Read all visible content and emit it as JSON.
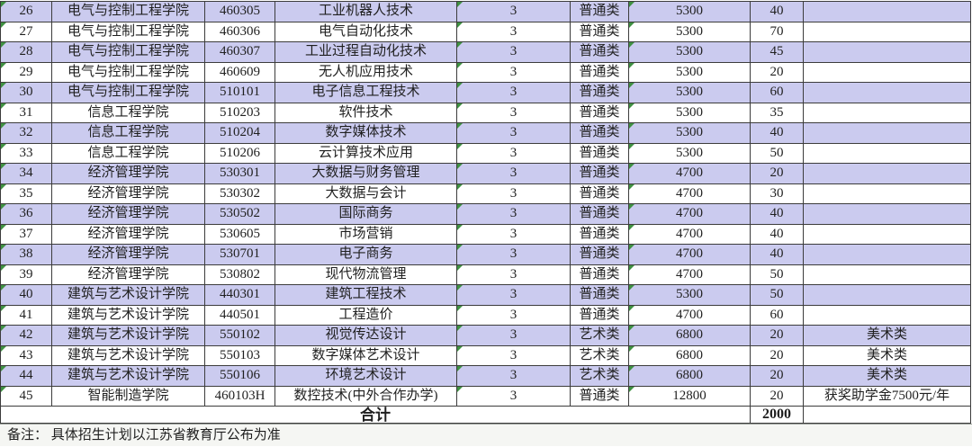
{
  "table": {
    "rows": [
      {
        "no": "26",
        "college": "电气与控制工程学院",
        "code": "460305",
        "major": "工业机器人技术",
        "years": "3",
        "type": "普通类",
        "tuition": "5300",
        "quota": "40",
        "note": ""
      },
      {
        "no": "27",
        "college": "电气与控制工程学院",
        "code": "460306",
        "major": "电气自动化技术",
        "years": "3",
        "type": "普通类",
        "tuition": "5300",
        "quota": "70",
        "note": ""
      },
      {
        "no": "28",
        "college": "电气与控制工程学院",
        "code": "460307",
        "major": "工业过程自动化技术",
        "years": "3",
        "type": "普通类",
        "tuition": "5300",
        "quota": "45",
        "note": ""
      },
      {
        "no": "29",
        "college": "电气与控制工程学院",
        "code": "460609",
        "major": "无人机应用技术",
        "years": "3",
        "type": "普通类",
        "tuition": "5300",
        "quota": "20",
        "note": ""
      },
      {
        "no": "30",
        "college": "电气与控制工程学院",
        "code": "510101",
        "major": "电子信息工程技术",
        "years": "3",
        "type": "普通类",
        "tuition": "5300",
        "quota": "60",
        "note": ""
      },
      {
        "no": "31",
        "college": "信息工程学院",
        "code": "510203",
        "major": "软件技术",
        "years": "3",
        "type": "普通类",
        "tuition": "5300",
        "quota": "35",
        "note": ""
      },
      {
        "no": "32",
        "college": "信息工程学院",
        "code": "510204",
        "major": "数字媒体技术",
        "years": "3",
        "type": "普通类",
        "tuition": "5300",
        "quota": "40",
        "note": ""
      },
      {
        "no": "33",
        "college": "信息工程学院",
        "code": "510206",
        "major": "云计算技术应用",
        "years": "3",
        "type": "普通类",
        "tuition": "5300",
        "quota": "50",
        "note": ""
      },
      {
        "no": "34",
        "college": "经济管理学院",
        "code": "530301",
        "major": "大数据与财务管理",
        "years": "3",
        "type": "普通类",
        "tuition": "4700",
        "quota": "20",
        "note": ""
      },
      {
        "no": "35",
        "college": "经济管理学院",
        "code": "530302",
        "major": "大数据与会计",
        "years": "3",
        "type": "普通类",
        "tuition": "4700",
        "quota": "30",
        "note": ""
      },
      {
        "no": "36",
        "college": "经济管理学院",
        "code": "530502",
        "major": "国际商务",
        "years": "3",
        "type": "普通类",
        "tuition": "4700",
        "quota": "40",
        "note": ""
      },
      {
        "no": "37",
        "college": "经济管理学院",
        "code": "530605",
        "major": "市场营销",
        "years": "3",
        "type": "普通类",
        "tuition": "4700",
        "quota": "40",
        "note": ""
      },
      {
        "no": "38",
        "college": "经济管理学院",
        "code": "530701",
        "major": "电子商务",
        "years": "3",
        "type": "普通类",
        "tuition": "4700",
        "quota": "40",
        "note": ""
      },
      {
        "no": "39",
        "college": "经济管理学院",
        "code": "530802",
        "major": "现代物流管理",
        "years": "3",
        "type": "普通类",
        "tuition": "4700",
        "quota": "50",
        "note": ""
      },
      {
        "no": "40",
        "college": "建筑与艺术设计学院",
        "code": "440301",
        "major": "建筑工程技术",
        "years": "3",
        "type": "普通类",
        "tuition": "5300",
        "quota": "50",
        "note": ""
      },
      {
        "no": "41",
        "college": "建筑与艺术设计学院",
        "code": "440501",
        "major": "工程造价",
        "years": "3",
        "type": "普通类",
        "tuition": "4700",
        "quota": "60",
        "note": ""
      },
      {
        "no": "42",
        "college": "建筑与艺术设计学院",
        "code": "550102",
        "major": "视觉传达设计",
        "years": "3",
        "type": "艺术类",
        "tuition": "6800",
        "quota": "20",
        "note": "美术类"
      },
      {
        "no": "43",
        "college": "建筑与艺术设计学院",
        "code": "550103",
        "major": "数字媒体艺术设计",
        "years": "3",
        "type": "艺术类",
        "tuition": "6800",
        "quota": "20",
        "note": "美术类"
      },
      {
        "no": "44",
        "college": "建筑与艺术设计学院",
        "code": "550106",
        "major": "环境艺术设计",
        "years": "3",
        "type": "艺术类",
        "tuition": "6800",
        "quota": "20",
        "note": "美术类"
      },
      {
        "no": "45",
        "college": "智能制造学院",
        "code": "460103H",
        "major": "数控技术(中外合作办学)",
        "years": "3",
        "type": "普通类",
        "tuition": "12800",
        "quota": "20",
        "note": "获奖助学金7500元/年"
      }
    ],
    "total": {
      "label": "合计",
      "quota_total": "2000"
    }
  },
  "footer": {
    "note": "备注： 具体招生计划以江苏省教育厅公布为准"
  },
  "colors": {
    "row_highlight": "#cbcbef",
    "error_indicator_green": "#3f9142",
    "grid_border": "#3c3c3c",
    "footer_background": "#f5f6f3"
  },
  "icons": {
    "error_indicator": "green-corner-triangle"
  }
}
